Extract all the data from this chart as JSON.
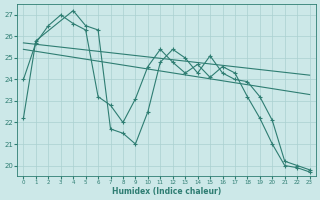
{
  "xlabel": "Humidex (Indice chaleur)",
  "background_color": "#cce8e8",
  "grid_color": "#aad0d0",
  "line_color": "#2e7d72",
  "xlim": [
    -0.5,
    23.5
  ],
  "ylim": [
    19.5,
    27.5
  ],
  "yticks": [
    20,
    21,
    22,
    23,
    24,
    25,
    26,
    27
  ],
  "xticks": [
    0,
    1,
    2,
    3,
    4,
    5,
    6,
    7,
    8,
    9,
    10,
    11,
    12,
    13,
    14,
    15,
    16,
    17,
    18,
    19,
    20,
    21,
    22,
    23
  ],
  "series": [
    {
      "x": [
        0,
        1,
        2,
        3,
        4,
        5,
        6,
        7,
        8,
        9,
        10,
        11,
        12,
        13,
        14,
        15,
        16,
        17,
        18,
        19,
        20,
        21,
        22,
        23
      ],
      "y": [
        24.0,
        25.7,
        26.5,
        27.0,
        26.6,
        26.3,
        23.2,
        22.8,
        22.0,
        23.1,
        24.6,
        25.4,
        24.8,
        24.3,
        24.7,
        24.1,
        24.6,
        24.3,
        23.2,
        22.2,
        21.0,
        20.0,
        19.9,
        19.7
      ],
      "has_markers": true
    },
    {
      "x": [
        0,
        1,
        4,
        5,
        6,
        7,
        8,
        9,
        10,
        11,
        12,
        13,
        14,
        15,
        16,
        17,
        18,
        19,
        20,
        21,
        22,
        23
      ],
      "y": [
        22.2,
        25.8,
        27.2,
        26.5,
        26.3,
        21.7,
        21.5,
        21.0,
        22.5,
        24.8,
        25.4,
        25.0,
        24.3,
        25.1,
        24.3,
        24.0,
        23.9,
        23.2,
        22.1,
        20.2,
        20.0,
        19.8
      ],
      "has_markers": true
    },
    {
      "x": [
        0,
        23
      ],
      "y": [
        25.7,
        24.2
      ],
      "has_markers": false
    },
    {
      "x": [
        0,
        23
      ],
      "y": [
        25.4,
        23.3
      ],
      "has_markers": false
    }
  ]
}
